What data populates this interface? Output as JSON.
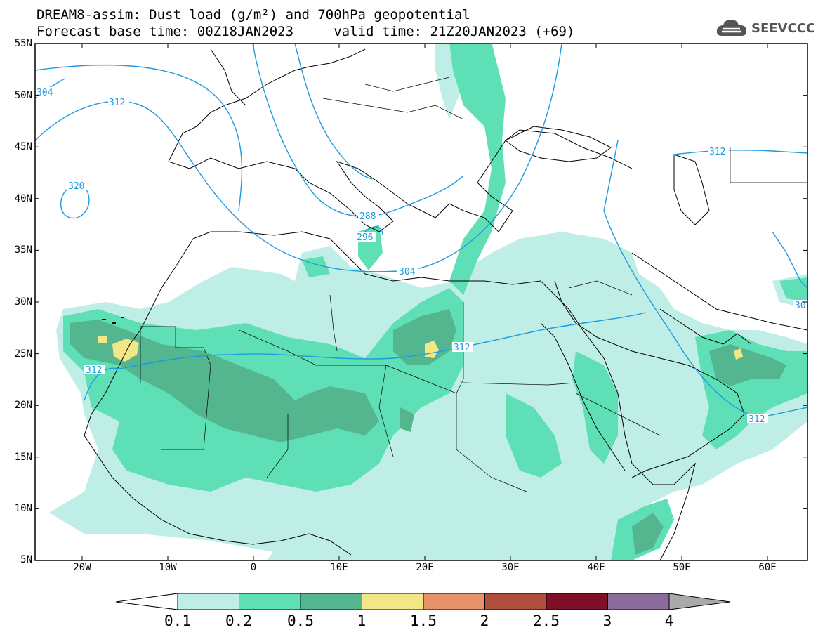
{
  "title": {
    "line1": "DREAM8-assim: Dust load (g/m²) and 700hPa geopotential",
    "line2": "Forecast base time: 00Z18JAN2023     valid time: 21Z20JAN2023 (+69)"
  },
  "logo": {
    "icon": "cloud-icon",
    "text": "SEEVCCC"
  },
  "axes": {
    "lat_labels": [
      "55N",
      "50N",
      "45N",
      "40N",
      "35N",
      "30N",
      "25N",
      "20N",
      "15N",
      "10N",
      "5N"
    ],
    "lon_labels": [
      "20W",
      "10W",
      "0",
      "10E",
      "20E",
      "30E",
      "40E",
      "50E",
      "60E"
    ]
  },
  "contours": {
    "labels": [
      "304",
      "312",
      "320",
      "288",
      "296",
      "304",
      "312",
      "312",
      "312",
      "312",
      "30"
    ]
  },
  "colorbar": {
    "colors": [
      "#ffffff",
      "#bfeee6",
      "#5fdfb6",
      "#54b68f",
      "#f2e784",
      "#e8926a",
      "#b04e3c",
      "#80102a",
      "#8b6a9c",
      "#aaaaaa"
    ],
    "tick_labels": [
      "0.1",
      "0.2",
      "0.5",
      "1",
      "1.5",
      "2",
      "2.5",
      "3",
      "4"
    ]
  },
  "colors": {
    "level1": "#bfeee6",
    "level2": "#5fdfb6",
    "level3": "#54b68f",
    "level4": "#f2e784",
    "contour": "#1e9be0",
    "coast": "#000000"
  }
}
